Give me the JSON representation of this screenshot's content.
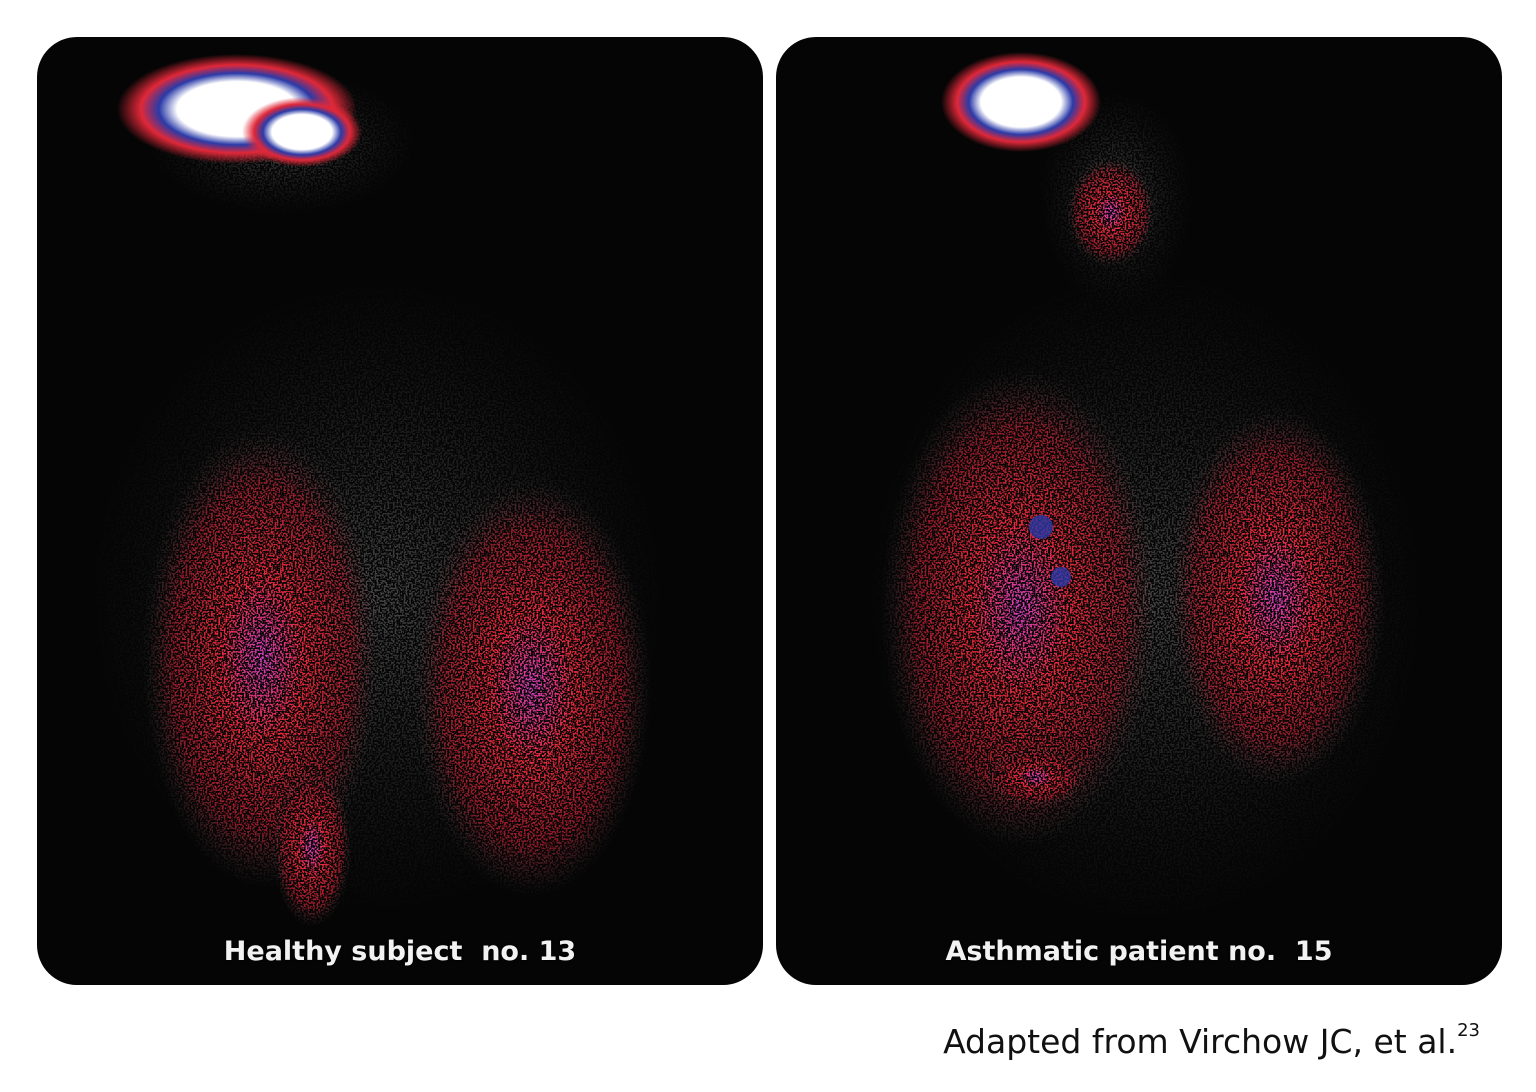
{
  "panels": [
    {
      "label": "Healthy subject  no. 13"
    },
    {
      "label": "Asthmatic patient no.  15"
    }
  ],
  "credit": {
    "text": "Adapted from Virchow JC, et al.",
    "ref": "23"
  },
  "colors": {
    "background": "#050505",
    "high": "#ffffff",
    "mid": "#2030a0",
    "low": "#e02030",
    "trace": "#555555"
  }
}
